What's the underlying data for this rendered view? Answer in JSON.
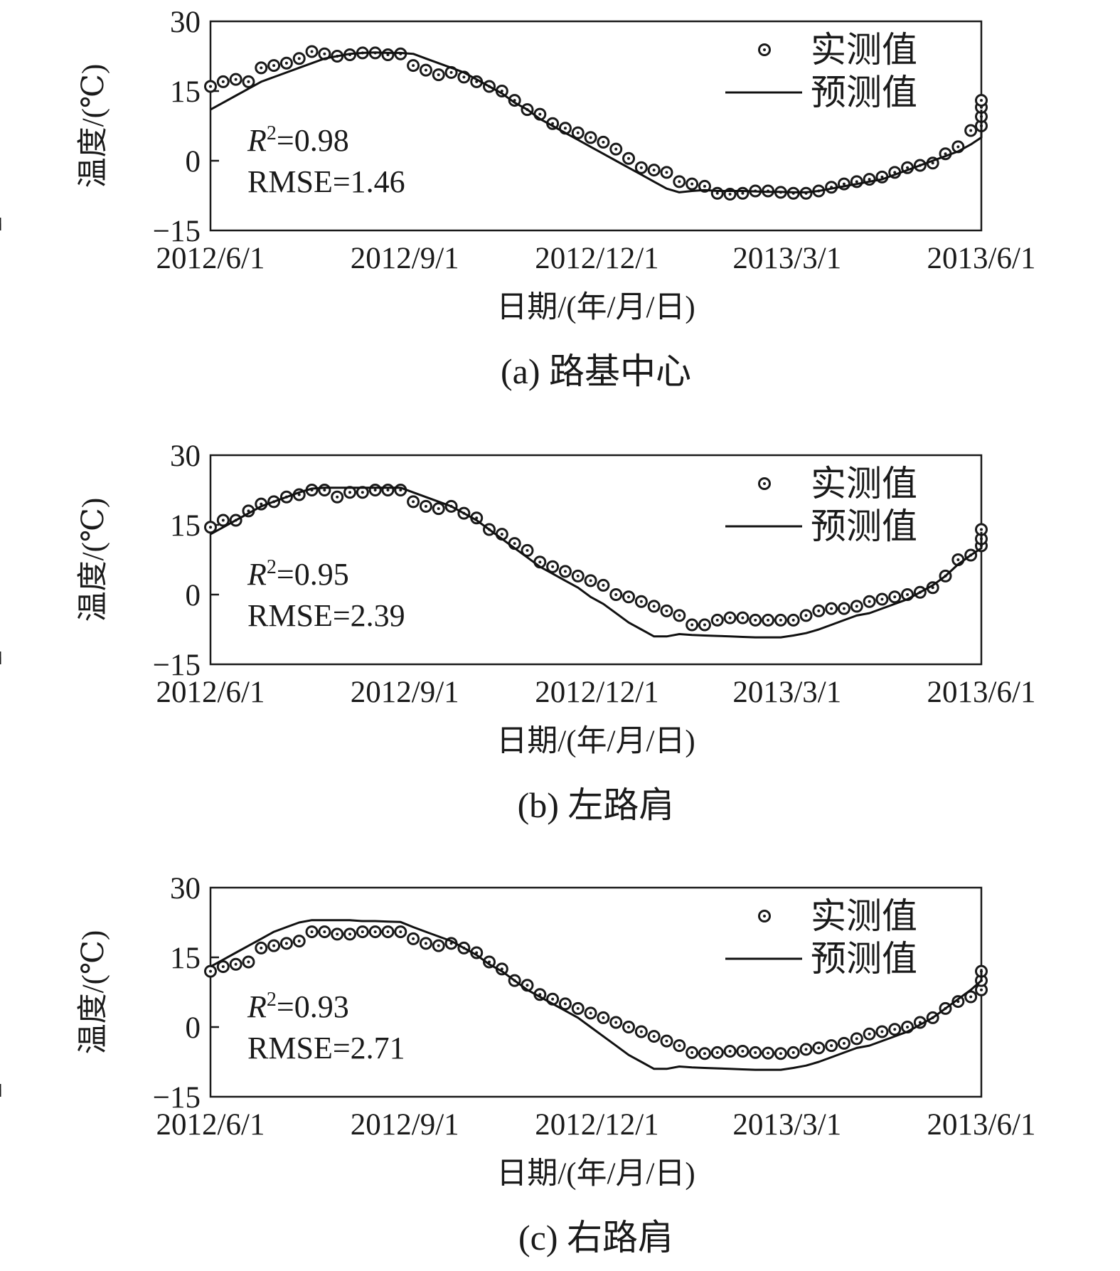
{
  "chart_data": [
    {
      "type": "scatter",
      "caption": "(a) 路基中心",
      "ylabel": "温度/(℃)",
      "xlabel": "日期/(年/月/日)",
      "ylim": [
        -15,
        30
      ],
      "yticks": [
        "30",
        "15",
        "0",
        "−15"
      ],
      "xticks": [
        "2012/6/1",
        "2012/9/1",
        "2012/12/1",
        "2013/3/1",
        "2013/6/1"
      ],
      "xlim": [
        "2012/6/1",
        "2013/6/1"
      ],
      "legend": [
        "实测值",
        "预测值"
      ],
      "legend_position": "top-right",
      "stats": {
        "r2_prefix": "R",
        "r2_sup": "2",
        "r2": "=0.98",
        "rmse": "RMSE=1.46"
      },
      "series": [
        {
          "name": "实测值",
          "style": "markers",
          "x_step_days": 6,
          "values": [
            16,
            17,
            17.5,
            17,
            20,
            20.5,
            21,
            22,
            23.5,
            23,
            22.5,
            22.8,
            23.2,
            23.2,
            22.8,
            23,
            20.5,
            19.5,
            18.5,
            19,
            18,
            17,
            16,
            15,
            13,
            11,
            10,
            8,
            7,
            6,
            5,
            4,
            2.5,
            0.5,
            -1.5,
            -2,
            -2.5,
            -4.5,
            -5,
            -5.5,
            -7,
            -7.2,
            -7,
            -6.5,
            -6.5,
            -6.8,
            -7,
            -7,
            -6.5,
            -5.7,
            -5,
            -4.5,
            -4,
            -3.5,
            -2.5,
            -1.5,
            -1,
            -0.5,
            1.5,
            3,
            6.5,
            7.5,
            9.5,
            11.5,
            13
          ]
        },
        {
          "name": "预测值",
          "style": "line",
          "color": "#111111",
          "x_step_days": 6,
          "values": [
            11,
            12.5,
            14,
            15.5,
            17,
            18,
            19,
            20,
            21,
            22,
            22.5,
            23,
            23.2,
            23.3,
            23.2,
            23.2,
            23,
            22,
            21,
            20,
            19,
            17.5,
            16,
            14.5,
            12.5,
            11,
            9,
            7.5,
            6,
            4.5,
            3,
            1.5,
            0,
            -1.5,
            -3,
            -4.5,
            -6,
            -6.8,
            -6.5,
            -6.3,
            -6.5,
            -6.5,
            -6.5,
            -6.6,
            -6.7,
            -6.7,
            -6.8,
            -6.8,
            -6.5,
            -6,
            -5.5,
            -5,
            -4.5,
            -4,
            -3,
            -2,
            -1,
            0,
            1,
            2,
            3.5,
            5,
            7,
            9,
            11
          ]
        }
      ]
    },
    {
      "type": "scatter",
      "caption": "(b) 左路肩",
      "ylabel": "温度/(℃)",
      "xlabel": "日期/(年/月/日)",
      "ylim": [
        -15,
        30
      ],
      "yticks": [
        "30",
        "15",
        "0",
        "−15"
      ],
      "xticks": [
        "2012/6/1",
        "2012/9/1",
        "2012/12/1",
        "2013/3/1",
        "2013/6/1"
      ],
      "xlim": [
        "2012/6/1",
        "2013/6/1"
      ],
      "legend": [
        "实测值",
        "预测值"
      ],
      "legend_position": "top-right",
      "stats": {
        "r2_prefix": "R",
        "r2_sup": "2",
        "r2": "=0.95",
        "rmse": "RMSE=2.39"
      },
      "series": [
        {
          "name": "实测值",
          "style": "markers",
          "x_step_days": 6,
          "values": [
            14.5,
            16,
            16,
            18,
            19.5,
            20,
            21,
            21.5,
            22.5,
            22.5,
            21,
            22,
            22,
            22.5,
            22.5,
            22.5,
            20,
            19,
            18.5,
            19,
            17.5,
            16.5,
            14,
            13,
            11,
            9.5,
            7,
            6,
            5,
            4,
            3,
            2,
            0,
            -0.5,
            -1.5,
            -2.5,
            -3.5,
            -4.5,
            -6.5,
            -6.5,
            -5.5,
            -5,
            -5,
            -5.5,
            -5.5,
            -5.5,
            -5.5,
            -4.5,
            -3.5,
            -3,
            -3,
            -2.5,
            -1.5,
            -1,
            -0.5,
            0,
            0.5,
            1.5,
            4,
            7.5,
            8.5,
            10.5,
            12,
            14
          ]
        },
        {
          "name": "预测值",
          "style": "line",
          "color": "#111111",
          "x_step_days": 6,
          "values": [
            13,
            14.5,
            16,
            17.5,
            19,
            20,
            21,
            22,
            22.8,
            23,
            23,
            23,
            23,
            23,
            23,
            23,
            22,
            21,
            20,
            19,
            17.5,
            16,
            14,
            12,
            10,
            8,
            6,
            4.5,
            3,
            1.5,
            -0.5,
            -2,
            -4,
            -6,
            -7.5,
            -9,
            -9,
            -8.5,
            -8.7,
            -8.8,
            -8.9,
            -9,
            -9.1,
            -9.2,
            -9.2,
            -9.2,
            -8.8,
            -8.3,
            -7.5,
            -6.5,
            -5.5,
            -4.5,
            -4,
            -3,
            -2,
            -1,
            0.5,
            2,
            4,
            6.5,
            8.5,
            10,
            12,
            13.5
          ]
        }
      ]
    },
    {
      "type": "scatter",
      "caption": "(c) 右路肩",
      "ylabel": "温度/(℃)",
      "xlabel": "日期/(年/月/日)",
      "ylim": [
        -15,
        30
      ],
      "yticks": [
        "30",
        "15",
        "0",
        "−15"
      ],
      "xticks": [
        "2012/6/1",
        "2012/9/1",
        "2012/12/1",
        "2013/3/1",
        "2013/6/1"
      ],
      "xlim": [
        "2012/6/1",
        "2013/6/1"
      ],
      "legend": [
        "实测值",
        "预测值"
      ],
      "legend_position": "top-right",
      "stats": {
        "r2_prefix": "R",
        "r2_sup": "2",
        "r2": "=0.93",
        "rmse": "RMSE=2.71"
      },
      "series": [
        {
          "name": "实测值",
          "style": "markers",
          "x_step_days": 6,
          "values": [
            12,
            13,
            13.5,
            14,
            17,
            17.5,
            18,
            18.5,
            20.5,
            20.5,
            20,
            20,
            20.5,
            20.5,
            20.5,
            20.5,
            19,
            18,
            17.5,
            18,
            17,
            16,
            14,
            12.5,
            10,
            9,
            7,
            6,
            5,
            4,
            3,
            2,
            1,
            0,
            -1,
            -2,
            -3,
            -4,
            -5.5,
            -5.7,
            -5.5,
            -5.2,
            -5.2,
            -5.5,
            -5.6,
            -5.7,
            -5.5,
            -4.8,
            -4.5,
            -4,
            -3.5,
            -2.5,
            -1.5,
            -1,
            -0.5,
            0,
            1,
            2,
            4,
            5.5,
            6.5,
            8,
            10,
            12
          ]
        },
        {
          "name": "预测值",
          "style": "line",
          "color": "#111111",
          "x_step_days": 6,
          "values": [
            13,
            14.5,
            16,
            17.5,
            19,
            20.5,
            21.5,
            22.5,
            23,
            23,
            23,
            23,
            22.8,
            22.8,
            22.7,
            22.6,
            21.5,
            20.5,
            19.5,
            18.5,
            17,
            15.5,
            13.5,
            12,
            10,
            8,
            6.5,
            5,
            3.5,
            2,
            0,
            -2,
            -4,
            -6,
            -7.5,
            -9,
            -9,
            -8.5,
            -8.7,
            -8.8,
            -8.9,
            -9,
            -9.1,
            -9.2,
            -9.2,
            -9.2,
            -8.8,
            -8.3,
            -7.5,
            -6.5,
            -5.5,
            -4.5,
            -4,
            -3,
            -2,
            -1,
            0.5,
            2,
            4,
            6,
            8,
            10,
            11.5,
            12.5
          ]
        }
      ]
    }
  ]
}
